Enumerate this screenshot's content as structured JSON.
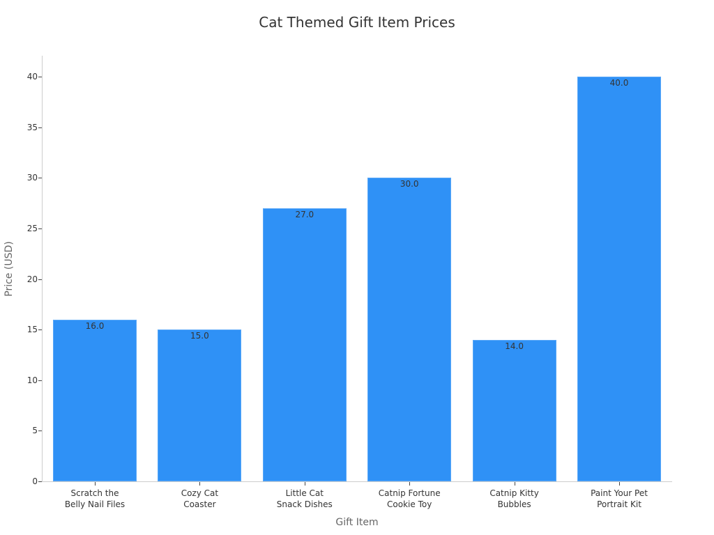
{
  "chart_data": {
    "type": "bar",
    "title": "Cat Themed Gift Item Prices",
    "xlabel": "Gift Item",
    "ylabel": "Price (USD)",
    "categories": [
      "Scratch the Belly Nail Files",
      "Cozy Cat Coaster",
      "Little Cat Snack Dishes",
      "Catnip Fortune Cookie Toy",
      "Catnip Kitty Bubbles",
      "Paint Your Pet Portrait Kit"
    ],
    "category_lines": [
      [
        "Scratch the",
        "Belly Nail Files"
      ],
      [
        "Cozy Cat",
        "Coaster"
      ],
      [
        "Little Cat",
        "Snack Dishes"
      ],
      [
        "Catnip Fortune",
        "Cookie Toy"
      ],
      [
        "Catnip Kitty",
        "Bubbles"
      ],
      [
        "Paint Your Pet",
        "Portrait Kit"
      ]
    ],
    "values": [
      16.0,
      15.0,
      27.0,
      30.0,
      14.0,
      40.0
    ],
    "value_labels": [
      "16.0",
      "15.0",
      "27.0",
      "30.0",
      "14.0",
      "40.0"
    ],
    "yticks": [
      0,
      5,
      10,
      15,
      20,
      25,
      30,
      35,
      40
    ],
    "ylim": [
      0,
      42
    ],
    "grid": false,
    "legend": null,
    "bar_color": "#2f91f6"
  }
}
